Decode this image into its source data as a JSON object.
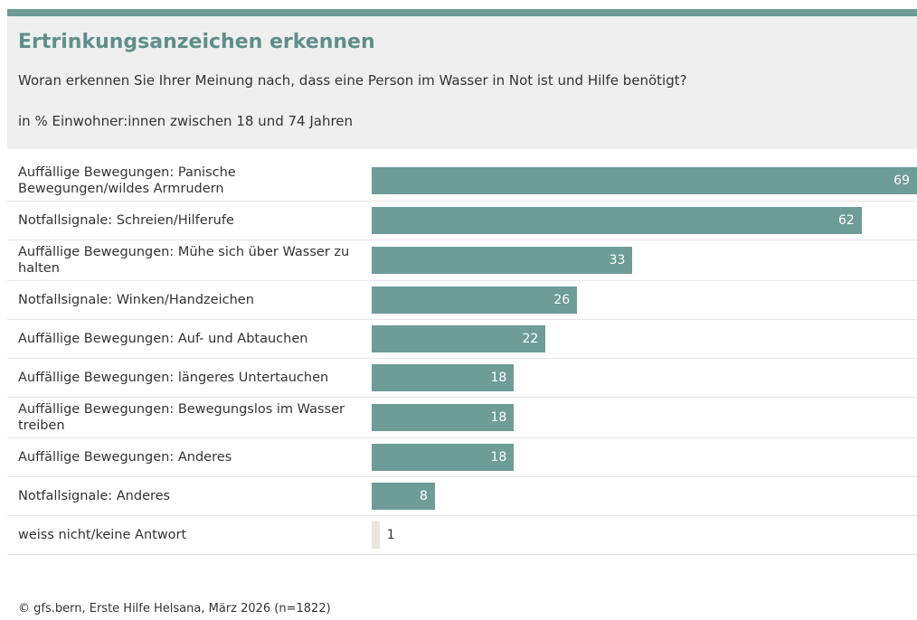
{
  "chart_data": {
    "type": "bar",
    "orientation": "horizontal",
    "title": "Ertrinkungsanzeichen erkennen",
    "subtitle": "Woran erkennen Sie Ihrer Meinung nach, dass eine Person im Wasser in Not ist und Hilfe benötigt?",
    "note": "in % Einwohner:innen zwischen 18 und 74 Jahren",
    "source": "© gfs.bern, Erste Hilfe Helsana, März 2026 (n=1822)",
    "categories": [
      "Auffällige Bewegungen: Panische Bewegungen/wildes Armrudern",
      "Notfallsignale: Schreien/Hilferufe",
      "Auffällige Bewegungen: Mühe sich über Wasser zu halten",
      "Notfallsignale: Winken/Handzeichen",
      "Auffällige Bewegungen: Auf- und Abtauchen",
      "Auffällige Bewegungen: längeres Untertauchen",
      "Auffällige Bewegungen: Bewegungslos im Wasser treiben",
      "Auffällige Bewegungen: Anderes",
      "Notfallsignale: Anderes",
      "weiss nicht/keine Antwort"
    ],
    "values": [
      69,
      62,
      33,
      26,
      22,
      18,
      18,
      18,
      8,
      1
    ],
    "colors": [
      "#6e9c97",
      "#6e9c97",
      "#6e9c97",
      "#6e9c97",
      "#6e9c97",
      "#6e9c97",
      "#6e9c97",
      "#6e9c97",
      "#6e9c97",
      "#e9e5e1"
    ],
    "xlim": [
      0,
      69
    ]
  }
}
